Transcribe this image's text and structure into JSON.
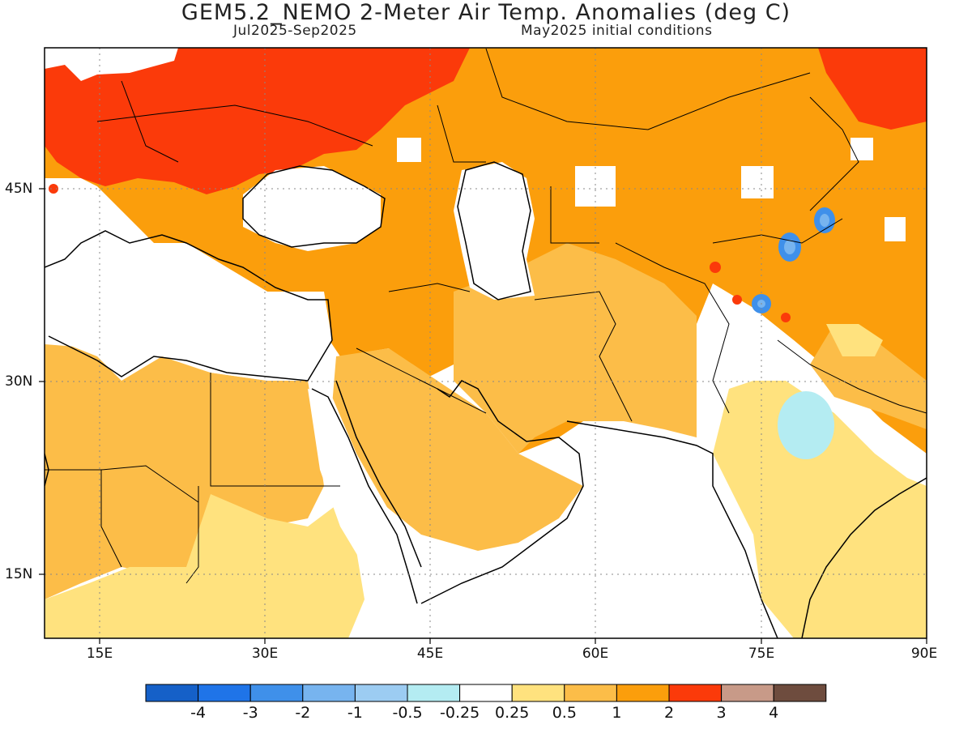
{
  "title": "GEM5.2_NEMO 2-Meter Air Temp. Anomalies (deg C)",
  "subtitle_left": "Jul2025-Sep2025",
  "subtitle_right": "May2025 initial conditions",
  "lon_ticks": [
    "15E",
    "30E",
    "45E",
    "60E",
    "75E",
    "90E"
  ],
  "lat_ticks": [
    "45N",
    "30N",
    "15N"
  ],
  "colorbar": {
    "labels": [
      "-4",
      "-3",
      "-2",
      "-1",
      "-0.5",
      "-0.25",
      "0.25",
      "0.5",
      "1",
      "2",
      "3",
      "4"
    ],
    "colors": [
      "#1560c8",
      "#1f74e8",
      "#3f90ea",
      "#77b4ef",
      "#9cccf2",
      "#b4ecf2",
      "#ffffff",
      "#ffe27e",
      "#fcbd48",
      "#fb9e0c",
      "#fb3a0a",
      "#c89a88",
      "#6e4c3e"
    ]
  },
  "map": {
    "projection": "lat-lon",
    "lon_range": [
      10,
      90
    ],
    "lat_range": [
      10,
      56
    ],
    "grid": "dotted",
    "regions_warmest": [
      "Europe"
    ],
    "regions_cool": [
      "central India",
      "western Himalaya / Tien Shan"
    ]
  }
}
